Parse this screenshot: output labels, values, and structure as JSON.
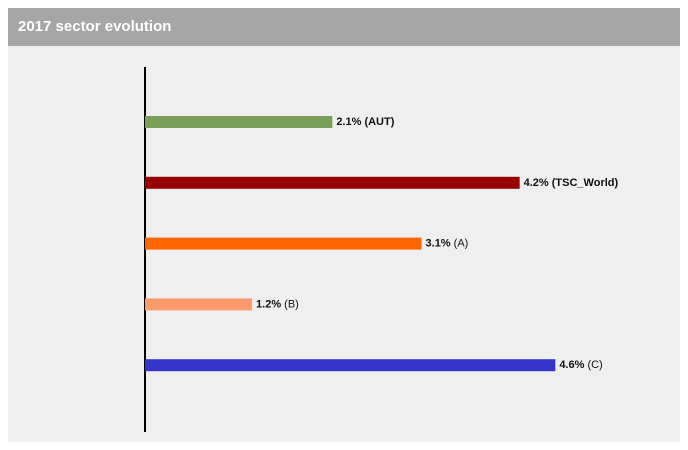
{
  "chart_data": {
    "type": "bar",
    "title": "2017 sector evolution",
    "categories": [
      "(AUT)",
      "(TSC_World)",
      "(A)",
      "(B)",
      "(C)"
    ],
    "values": [
      2.1,
      4.2,
      3.1,
      1.2,
      4.6
    ],
    "value_labels": [
      "2.1%",
      "4.2%",
      "3.1%",
      "1.2%",
      "4.6%"
    ],
    "colors": [
      "#7aa05a",
      "#990000",
      "#ff6600",
      "#fc9a6b",
      "#3535cc"
    ],
    "label_bold": [
      true,
      true,
      false,
      false,
      false
    ]
  }
}
